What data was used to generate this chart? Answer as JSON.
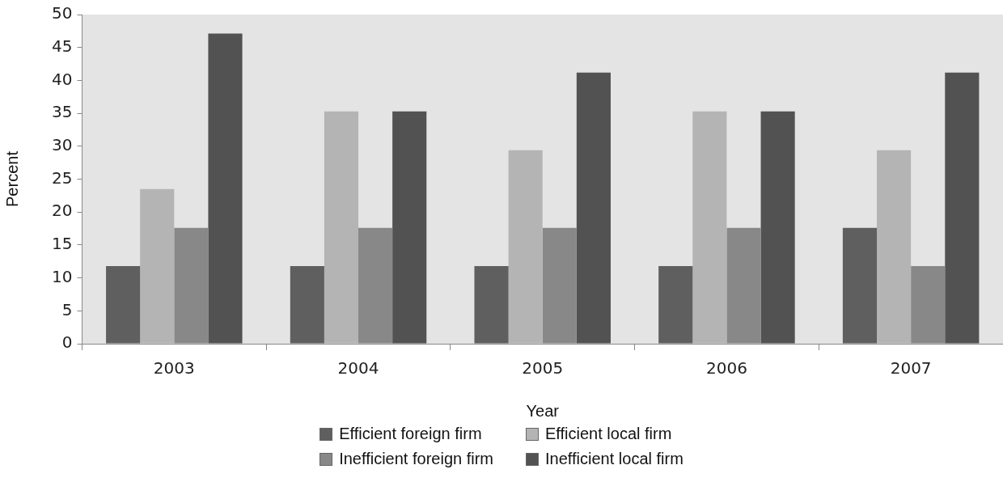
{
  "chart_data": {
    "type": "bar",
    "xlabel": "Year",
    "ylabel": "Percent",
    "categories": [
      "2003",
      "2004",
      "2005",
      "2006",
      "2007"
    ],
    "series": [
      {
        "name": "Efficient foreign firm",
        "color": "#5f5f5f",
        "values": [
          11.8,
          11.8,
          11.8,
          11.8,
          17.6
        ]
      },
      {
        "name": "Efficient local firm",
        "color": "#b4b4b4",
        "values": [
          23.5,
          35.3,
          29.4,
          35.3,
          29.4
        ]
      },
      {
        "name": "Inefficient foreign firm",
        "color": "#888888",
        "values": [
          17.6,
          17.6,
          17.6,
          17.6,
          11.8
        ]
      },
      {
        "name": "Inefficient local firm",
        "color": "#525252",
        "values": [
          47.1,
          35.3,
          41.2,
          35.3,
          41.2
        ]
      }
    ],
    "ylim": [
      0,
      50
    ],
    "yticks": [
      0,
      5,
      10,
      15,
      20,
      25,
      30,
      35,
      40,
      45,
      50
    ],
    "grid": false,
    "legend": "bottom"
  }
}
